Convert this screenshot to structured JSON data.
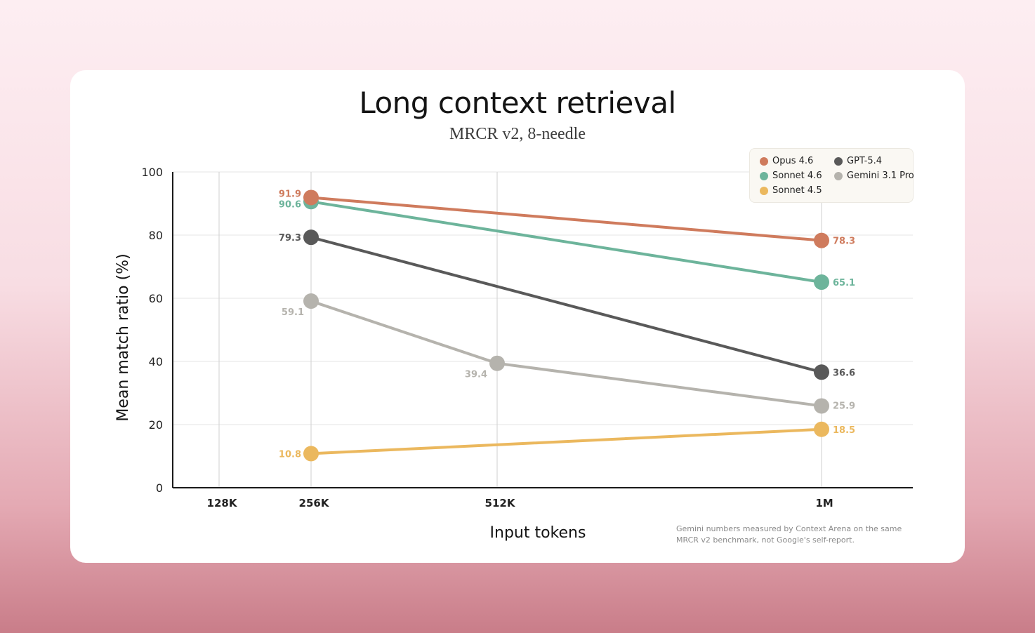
{
  "chart_data": {
    "type": "line",
    "title": "Long context retrieval",
    "subtitle": "MRCR v2, 8-needle",
    "xlabel": "Input tokens",
    "ylabel": "Mean match ratio (%)",
    "ylim": [
      0,
      100
    ],
    "y_ticks": [
      "0",
      "20",
      "40",
      "60",
      "80",
      "100"
    ],
    "categories": [
      "128K",
      "256K",
      "512K",
      "1M"
    ],
    "legend_position": "top-right",
    "series": [
      {
        "name": "Opus 4.6",
        "color": "#cf7b5d",
        "points": [
          {
            "x": "256K",
            "y": 91.9,
            "label": "91.9"
          },
          {
            "x": "1M",
            "y": 78.3,
            "label": "78.3"
          }
        ]
      },
      {
        "name": "Sonnet 4.6",
        "color": "#6db49b",
        "points": [
          {
            "x": "256K",
            "y": 90.6,
            "label": "90.6"
          },
          {
            "x": "1M",
            "y": 65.1,
            "label": "65.1"
          }
        ]
      },
      {
        "name": "GPT-5.4",
        "color": "#595959",
        "points": [
          {
            "x": "256K",
            "y": 79.3,
            "label": "79.3"
          },
          {
            "x": "1M",
            "y": 36.6,
            "label": "36.6"
          }
        ]
      },
      {
        "name": "Gemini 3.1 Pro",
        "color": "#b5b3ad",
        "points": [
          {
            "x": "256K",
            "y": 59.1,
            "label": "59.1"
          },
          {
            "x": "512K",
            "y": 39.4,
            "label": "39.4"
          },
          {
            "x": "1M",
            "y": 25.9,
            "label": "25.9"
          }
        ]
      },
      {
        "name": "Sonnet 4.5",
        "color": "#ebb85e",
        "points": [
          {
            "x": "256K",
            "y": 10.8,
            "label": "10.8"
          },
          {
            "x": "1M",
            "y": 18.5,
            "label": "18.5"
          }
        ]
      }
    ],
    "footnote": "Gemini numbers measured by Context Arena on the same MRCR v2 benchmark, not Google's self-report."
  }
}
